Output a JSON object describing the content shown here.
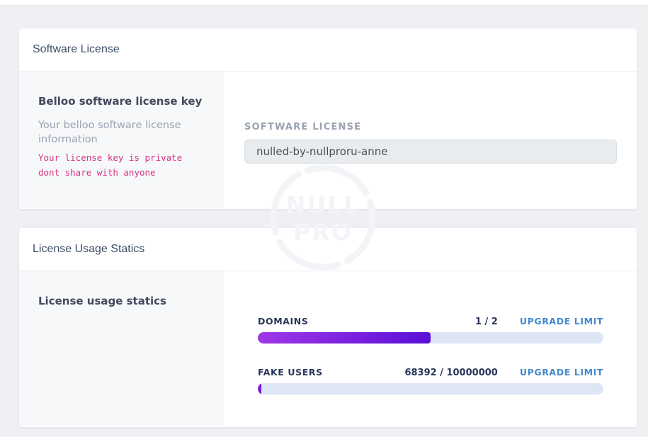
{
  "page": {
    "background_color": "#eef0f4"
  },
  "software_license_card": {
    "title": "Software License",
    "sidebar": {
      "heading": "Belloo software license key",
      "description": "Your belloo software license information",
      "warning": "Your license key is private dont share with anyone"
    },
    "form": {
      "label": "SOFTWARE LICENSE",
      "value": "nulled-by-nullproru-anne"
    }
  },
  "usage_card": {
    "title": "License Usage Statics",
    "sidebar": {
      "heading": "License usage statics"
    },
    "stats": [
      {
        "label": "DOMAINS",
        "value": "1 / 2",
        "link": "UPGRADE LIMIT",
        "used": 1,
        "limit": 2,
        "percent": 50
      },
      {
        "label": "FAKE USERS",
        "value": "68392 / 10000000",
        "link": "UPGRADE LIMIT",
        "used": 68392,
        "limit": 10000000,
        "percent": 1
      }
    ]
  },
  "watermark": {
    "line1": "NULL",
    "line2": "PRO"
  },
  "colors": {
    "progress_gradient_start": "#a037e6",
    "progress_gradient_end": "#5a0fd8",
    "progress_track": "#dee5f5",
    "upgrade_link_blue": "#4589cd",
    "warning_pink": "#d63384",
    "heading_navy": "#434a5d"
  }
}
